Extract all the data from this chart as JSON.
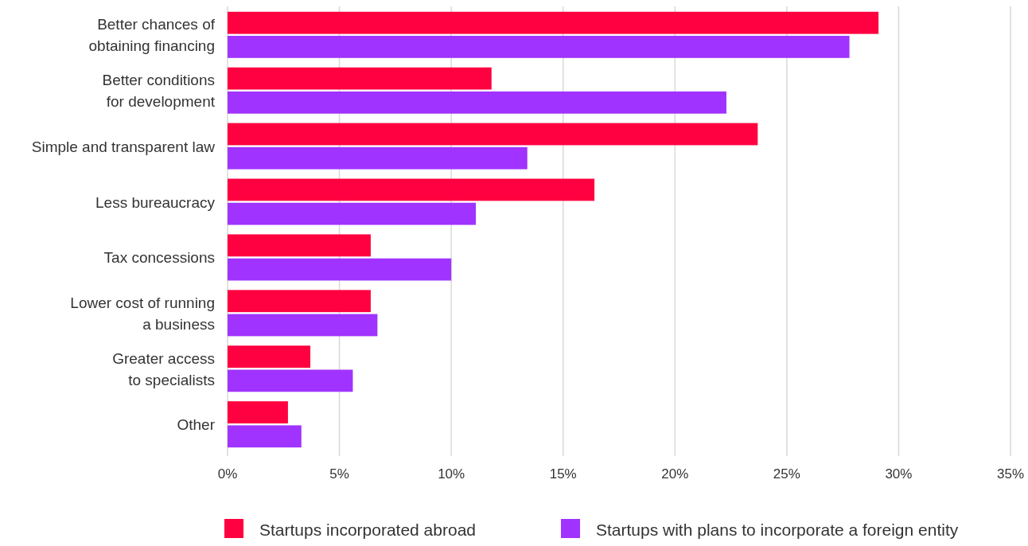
{
  "chart_data": {
    "type": "bar",
    "orientation": "horizontal",
    "categories": [
      "Better chances of\nobtaining financing",
      "Better conditions\nfor development",
      "Simple and transparent law",
      "Less bureaucracy",
      "Tax concessions",
      "Lower cost of running\na business",
      "Greater access\nto specialists",
      "Other"
    ],
    "series": [
      {
        "name": "Startups incorporated abroad",
        "color": "#ff0040",
        "values": [
          29.1,
          11.8,
          23.7,
          16.4,
          6.4,
          6.4,
          3.7,
          2.7
        ]
      },
      {
        "name": "Startups with plans to incorporate a foreign entity",
        "color": "#a033ff",
        "values": [
          27.8,
          22.3,
          13.4,
          11.1,
          10.0,
          6.7,
          5.6,
          3.3
        ]
      }
    ],
    "xlim": [
      0,
      35
    ],
    "xticks": [
      {
        "value": 0,
        "label": "0%"
      },
      {
        "value": 5,
        "label": "5%"
      },
      {
        "value": 10,
        "label": "10%"
      },
      {
        "value": 15,
        "label": "15%"
      },
      {
        "value": 20,
        "label": "20%"
      },
      {
        "value": 25,
        "label": "25%"
      },
      {
        "value": 30,
        "label": "30%"
      },
      {
        "value": 35,
        "label": "35%"
      }
    ],
    "grid": "x",
    "legend": "bottom"
  }
}
